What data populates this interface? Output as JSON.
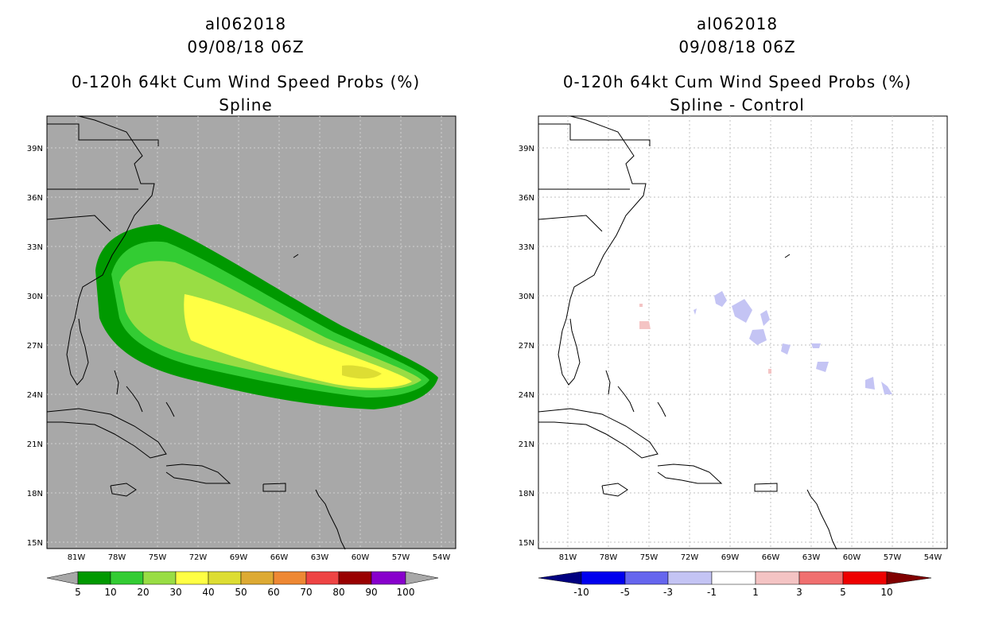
{
  "colors": {
    "land_bg": "#a8a8a8",
    "prob_bins": [
      "#009900",
      "#33cc33",
      "#99dd44",
      "#ffff44",
      "#dddd33",
      "#ddaa33",
      "#ee8833",
      "#ee4444",
      "#990000",
      "#8800cc"
    ],
    "diff_bins": [
      "#000080",
      "#0000ee",
      "#6666ee",
      "#c4c4f4",
      "#ffffff",
      "#f4c4c4",
      "#f07070",
      "#ee0000",
      "#800000"
    ]
  },
  "left_panel": {
    "storm_id": "al062018",
    "datetime": "09/08/18 06Z",
    "title": "0-120h 64kt Cum Wind Speed Probs (%)",
    "subtitle": "Spline",
    "colorbar_labels": [
      "5",
      "10",
      "20",
      "30",
      "40",
      "50",
      "60",
      "70",
      "80",
      "90",
      "100"
    ]
  },
  "right_panel": {
    "storm_id": "al062018",
    "datetime": "09/08/18 06Z",
    "title": "0-120h 64kt Cum Wind Speed Probs (%)",
    "subtitle": "Spline - Control",
    "colorbar_labels": [
      "-10",
      "-5",
      "-3",
      "-1",
      "1",
      "3",
      "5",
      "10"
    ]
  },
  "map": {
    "lat_labels": [
      "39N",
      "36N",
      "33N",
      "30N",
      "27N",
      "24N",
      "21N",
      "18N",
      "15N"
    ],
    "lon_labels": [
      "81W",
      "78W",
      "75W",
      "72W",
      "69W",
      "66W",
      "63W",
      "60W",
      "57W",
      "54W"
    ]
  }
}
